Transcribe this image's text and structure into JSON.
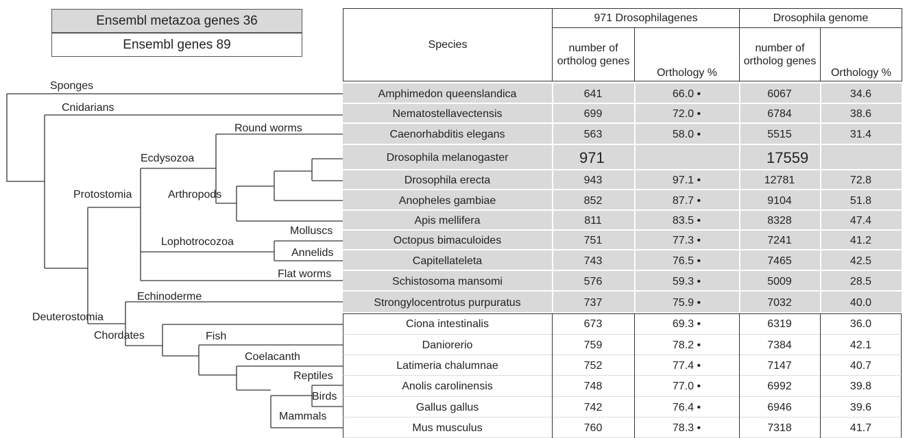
{
  "legend": {
    "top": "Ensembl metazoa genes 36",
    "bottom": "Ensembl genes 89"
  },
  "tree": {
    "labels": [
      "Sponges",
      "Cnidarians",
      "Round worms",
      "Ecdysozoa",
      "Protostomia",
      "Arthropods",
      "Molluscs",
      "Lophotrocozoa",
      "Annelids",
      "Flat worms",
      "Echinoderme",
      "Deuterostomia",
      "Chordates",
      "Fish",
      "Coelacanth",
      "Reptiles",
      "Birds",
      "Mammals"
    ]
  },
  "table": {
    "header": {
      "species": "Species",
      "group1": "971 Drosophilagenes",
      "group2": "Drosophila genome"
    },
    "columns": [
      "number of ortholog genes",
      "Orthology %",
      "number of ortholog genes",
      "Orthology %"
    ],
    "rows": [
      [
        "Amphimedon queenslandica",
        641,
        "66.0 •",
        6067,
        "34.6"
      ],
      [
        "Nematostellavectensis",
        699,
        "72.0 •",
        6784,
        "38.6"
      ],
      [
        "Caenorhabditis elegans",
        563,
        "58.0 •",
        5515,
        "31.4"
      ],
      [
        "Drosophila melanogaster",
        971,
        null,
        17559,
        null
      ],
      [
        "Drosophila erecta",
        943,
        "97.1 •",
        12781,
        "72.8"
      ],
      [
        "Anopheles gambiae",
        852,
        "87.7 •",
        9104,
        "51.8"
      ],
      [
        "Apis mellifera",
        811,
        "83.5 •",
        8328,
        "47.4"
      ],
      [
        "Octopus bimaculoides",
        751,
        "77.3 •",
        7241,
        "41.2"
      ],
      [
        "Capitellateleta",
        743,
        "76.5 •",
        7465,
        "42.5"
      ],
      [
        "Schistosoma mansomi",
        576,
        "59.3 •",
        5009,
        "28.5"
      ],
      [
        "Strongylocentrotus purpuratus",
        737,
        "75.9 •",
        7032,
        "40.0"
      ],
      [
        "Ciona intestinalis",
        673,
        "69.3 •",
        6319,
        "36.0"
      ],
      [
        "Daniorerio",
        759,
        "78.2 •",
        7384,
        "42.1"
      ],
      [
        "Latimeria chalumnae",
        752,
        "77.4 •",
        7147,
        "40.7"
      ],
      [
        "Anolis carolinensis",
        748,
        "77.0 •",
        6992,
        "39.8"
      ],
      [
        "Gallus gallus",
        742,
        "76.4 •",
        6946,
        "39.6"
      ],
      [
        "Mus musculus",
        760,
        "78.3 •",
        7318,
        "41.7"
      ]
    ]
  }
}
